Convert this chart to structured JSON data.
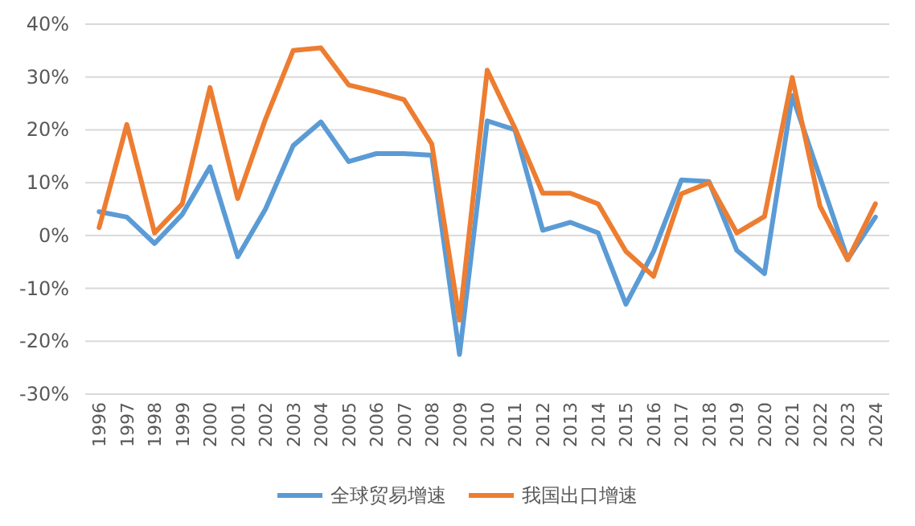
{
  "chart_data": {
    "type": "line",
    "categories": [
      "1996",
      "1997",
      "1998",
      "1999",
      "2000",
      "2001",
      "2002",
      "2003",
      "2004",
      "2005",
      "2006",
      "2007",
      "2008",
      "2009",
      "2010",
      "2011",
      "2012",
      "2013",
      "2014",
      "2015",
      "2016",
      "2017",
      "2018",
      "2019",
      "2020",
      "2021",
      "2022",
      "2023",
      "2024"
    ],
    "series": [
      {
        "name": "全球贸易增速",
        "color": "#5b9bd5",
        "values": [
          4.5,
          3.5,
          -1.5,
          4,
          13,
          -4,
          5,
          17,
          21.5,
          14,
          15.5,
          15.5,
          15.2,
          -22.5,
          21.7,
          20,
          1,
          2.5,
          0.5,
          -13,
          -3,
          10.5,
          10.2,
          -2.8,
          -7.2,
          26.5,
          11,
          -4.5,
          3.5
        ]
      },
      {
        "name": "我国出口增速",
        "color": "#ed7d31",
        "values": [
          1.5,
          21,
          0.5,
          6,
          28,
          7,
          22,
          35,
          35.5,
          28.5,
          27.2,
          25.7,
          17.3,
          -16,
          31.3,
          20.3,
          8,
          8,
          6,
          -3,
          -7.7,
          7.9,
          10,
          0.5,
          3.6,
          29.9,
          5.6,
          -4.6,
          6
        ]
      }
    ],
    "ylim": [
      -30,
      40
    ],
    "yticks": [
      {
        "value": -30,
        "label": "-30%"
      },
      {
        "value": -20,
        "label": "-20%"
      },
      {
        "value": -10,
        "label": "-10%"
      },
      {
        "value": 0,
        "label": "0%"
      },
      {
        "value": 10,
        "label": "10%"
      },
      {
        "value": 20,
        "label": "20%"
      },
      {
        "value": 30,
        "label": "30%"
      },
      {
        "value": 40,
        "label": "40%"
      }
    ],
    "grid": "y",
    "legend": "bottom",
    "marker": "none",
    "line_style": "solid"
  }
}
